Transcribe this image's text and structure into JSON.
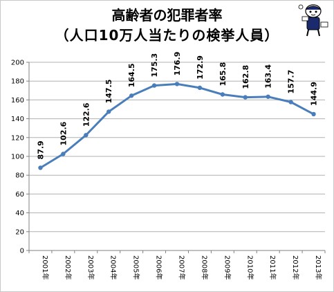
{
  "chart_data": {
    "type": "line",
    "title": "高齢者の犯罪者率",
    "subtitle": "（人口10万人当たりの検挙人員）",
    "categories": [
      "2001年",
      "2002年",
      "2003年",
      "2004年",
      "2005年",
      "2006年",
      "2007年",
      "2008年",
      "2009年",
      "2010年",
      "2011年",
      "2012年",
      "2013年"
    ],
    "series": [
      {
        "values": [
          87.9,
          102.6,
          122.6,
          147.5,
          164.5,
          175.3,
          176.9,
          172.9,
          165.8,
          162.8,
          163.4,
          157.7,
          144.9
        ]
      }
    ],
    "data_labels": [
      "87.9",
      "102.6",
      "122.6",
      "147.5",
      "164.5",
      "175.3",
      "176.9",
      "172.9",
      "165.8",
      "162.8",
      "163.4",
      "157.7",
      "144.9"
    ],
    "ylim": [
      0,
      200
    ],
    "yticks": [
      "0",
      "20",
      "40",
      "60",
      "80",
      "100",
      "120",
      "140",
      "160",
      "180",
      "200"
    ],
    "grid": true,
    "line_color": "#4a7ebb"
  }
}
